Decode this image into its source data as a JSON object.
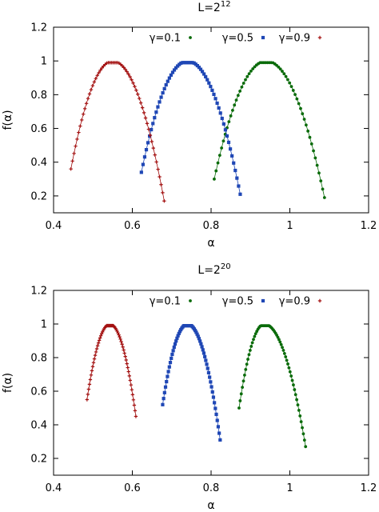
{
  "chart_data": [
    {
      "type": "scatter",
      "title_base": "L=2",
      "title_exp": "12",
      "xlabel": "α",
      "ylabel": "f(α)",
      "xlim": [
        0.4,
        1.2
      ],
      "ylim": [
        0.1,
        1.2
      ],
      "xticks": [
        0.4,
        0.6,
        0.8,
        1,
        1.2
      ],
      "xtick_labels": [
        "0.4",
        "0.6",
        "0.8",
        "1",
        "1.2"
      ],
      "yticks": [
        0.2,
        0.4,
        0.6,
        0.8,
        1,
        1.2
      ],
      "ytick_labels": [
        "0.2",
        "0.4",
        "0.6",
        "0.8",
        "1",
        "1.2"
      ],
      "legend_position": "top-right",
      "series": [
        {
          "name": "γ=0.1",
          "color": "#0a6b0a",
          "marker": "circle",
          "alpha_min": 0.808,
          "alpha_peak": 0.94,
          "alpha_max": 1.088,
          "f_left": 0.3,
          "f_right": 0.19
        },
        {
          "name": "γ=0.5",
          "color": "#1f47b5",
          "marker": "square",
          "alpha_min": 0.623,
          "alpha_peak": 0.74,
          "alpha_max": 0.874,
          "f_left": 0.34,
          "f_right": 0.21
        },
        {
          "name": "γ=0.9",
          "color": "#a31010",
          "marker": "plus",
          "alpha_min": 0.444,
          "alpha_peak": 0.55,
          "alpha_max": 0.681,
          "f_left": 0.36,
          "f_right": 0.17
        }
      ]
    },
    {
      "type": "scatter",
      "title_base": "L=2",
      "title_exp": "20",
      "xlabel": "α",
      "ylabel": "f(α)",
      "xlim": [
        0.4,
        1.2
      ],
      "ylim": [
        0.1,
        1.2
      ],
      "xticks": [
        0.4,
        0.6,
        0.8,
        1,
        1.2
      ],
      "xtick_labels": [
        "0.4",
        "0.6",
        "0.8",
        "1",
        "1.2"
      ],
      "yticks": [
        0.2,
        0.4,
        0.6,
        0.8,
        1,
        1.2
      ],
      "ytick_labels": [
        "0.2",
        "0.4",
        "0.6",
        "0.8",
        "1",
        "1.2"
      ],
      "legend_position": "top-right",
      "series": [
        {
          "name": "γ=0.1",
          "color": "#0a6b0a",
          "marker": "circle",
          "alpha_min": 0.871,
          "alpha_peak": 0.935,
          "alpha_max": 1.04,
          "f_left": 0.5,
          "f_right": 0.27
        },
        {
          "name": "γ=0.5",
          "color": "#1f47b5",
          "marker": "square",
          "alpha_min": 0.677,
          "alpha_peak": 0.74,
          "alpha_max": 0.823,
          "f_left": 0.52,
          "f_right": 0.31
        },
        {
          "name": "γ=0.9",
          "color": "#a31010",
          "marker": "plus",
          "alpha_min": 0.485,
          "alpha_peak": 0.543,
          "alpha_max": 0.609,
          "f_left": 0.55,
          "f_right": 0.45
        }
      ]
    }
  ]
}
